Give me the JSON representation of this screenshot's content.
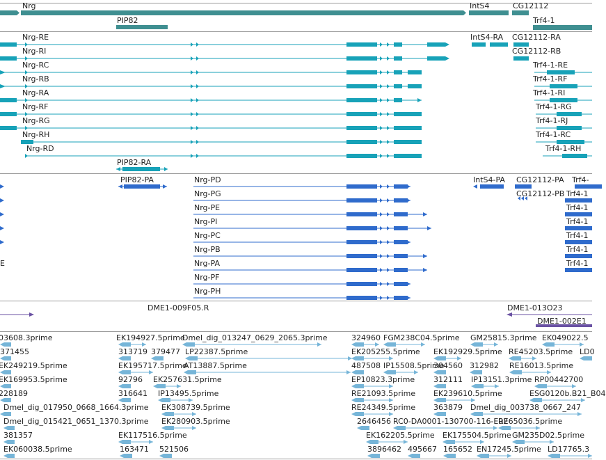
{
  "colors": {
    "gene": "#3f8f91",
    "transcript": "#17a2b8",
    "protein": "#2f6bcc",
    "repeat": "#6a52a3",
    "est": "#76b5d8"
  },
  "gene_track": {
    "labels": [
      "Nrg",
      "IntS4",
      "CG12112",
      "PIP82",
      "Trf4-1"
    ]
  },
  "transcript_track": {
    "nrg": [
      "Nrg-RE",
      "Nrg-RI",
      "Nrg-RC",
      "Nrg-RB",
      "Nrg-RA",
      "Nrg-RF",
      "Nrg-RG",
      "Nrg-RH",
      "Nrg-RD"
    ],
    "right": [
      "IntS4-RA",
      "CG12112-RA",
      "CG12112-RB",
      "Trf4-1-RE",
      "Trf4-1-RF",
      "Trf4-1-RI",
      "Trf4-1-RG",
      "Trf4-1-RJ",
      "Trf4-1-RC",
      "Trf4-1-RH"
    ],
    "pip": "PIP82-RA"
  },
  "protein_track": {
    "nrg": [
      "Nrg-PD",
      "Nrg-PG",
      "Nrg-PE",
      "Nrg-PI",
      "Nrg-PC",
      "Nrg-PB",
      "Nrg-PA",
      "Nrg-PF",
      "Nrg-PH"
    ],
    "pip": "PIP82-PA",
    "ints4": "IntS4-PA",
    "cg": [
      "CG12112-PA",
      "CG12112-PB"
    ],
    "trf_partial": [
      "Trf4-",
      "Trf4-1",
      "Trf4-1",
      "Trf4-1",
      "Trf4-1",
      "Trf4-1",
      "Trf4-1"
    ],
    "left_partial": "E"
  },
  "repeat_track": {
    "labels": [
      "DME1-009F05.R",
      "DME1-013O23",
      "DME1-002E1"
    ]
  },
  "est_track": {
    "labels": [
      "03608.3prime",
      "EK194927.5prime",
      "Dmel_dig_013247_0629_2065.3prime",
      "324960",
      "FGM238C04.5prime",
      "GM25815.3prime",
      "EK049022.5",
      "371455",
      "313719",
      "379477",
      "LP22387.5prime",
      "EK205255.5prime",
      "EK192929.5prime",
      "RE45203.5prime",
      "LD0",
      "EK249219.5prime",
      "EK195717.5prime",
      "AT13887.5prime",
      "487508",
      "IP15508.5prime",
      "304560",
      "312982",
      "RE16013.5prime",
      "EK169953.5prime",
      "92796",
      "EK257631.5prime",
      "EP10823.3prime",
      "312111",
      "IP13151.3prime",
      "RP00442700",
      "228189",
      "316641",
      "IP13495.5prime",
      "RE21093.5prime",
      "EK239610.5prime",
      "ESG0120b.B21_B04",
      "Dmel_dig_017950_0668_1664.3prime",
      "EK308739.5prime",
      "RE24349.5prime",
      "363879",
      "Dmel_dig_003738_0667_247",
      "Dmel_dig_015421_0651_1370.3prime",
      "EK280903.5prime",
      "2646456",
      "RC0-DA0001-130700-116-E02",
      "RE65036.5prime",
      "381357",
      "EK117516.5prime",
      "EK162205.5prime",
      "EK175504.5prime",
      "GM235D02.5prime",
      "EK060038.5prime",
      "163471",
      "521506",
      "3896462",
      "495667",
      "165652",
      "EN17245.5prime",
      "LD17765.3"
    ]
  }
}
